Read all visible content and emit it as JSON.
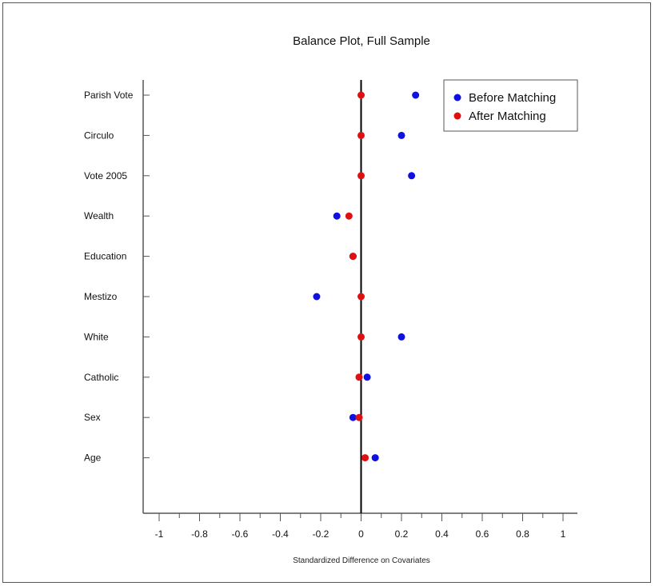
{
  "chart_data": {
    "type": "scatter",
    "title": "Balance Plot, Full Sample",
    "xlabel": "Standardized Difference on Covariates",
    "xlim": [
      -1,
      1
    ],
    "xticks": [
      -1,
      -0.8,
      -0.6,
      -0.4,
      -0.2,
      0,
      0.2,
      0.4,
      0.6,
      0.8,
      1
    ],
    "xtick_labels": [
      "-1",
      "-0.8",
      "-0.6",
      "-0.4",
      "-0.2",
      "0",
      "0.2",
      "0.4",
      "0.6",
      "0.8",
      "1"
    ],
    "categories": [
      "Parish Vote",
      "Circulo",
      "Vote 2005",
      "Wealth",
      "Education",
      "Mestizo",
      "White",
      "Catholic",
      "Sex",
      "Age"
    ],
    "series": [
      {
        "name": "Before Matching",
        "color": "#1010e0",
        "values": [
          0.27,
          0.2,
          0.25,
          -0.12,
          -0.04,
          -0.22,
          0.2,
          0.03,
          -0.04,
          0.07
        ]
      },
      {
        "name": "After Matching",
        "color": "#e01010",
        "values": [
          0.0,
          0.0,
          0.0,
          -0.06,
          -0.04,
          0.0,
          0.0,
          -0.01,
          -0.01,
          0.02
        ]
      }
    ],
    "reference_line": 0,
    "legend_position": "top-right",
    "grid": false
  }
}
